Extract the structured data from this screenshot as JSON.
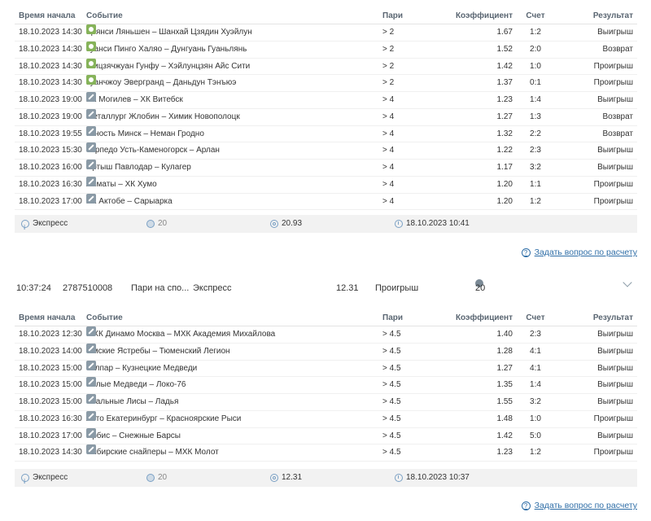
{
  "headers": {
    "time": "Время начала",
    "event": "Событие",
    "bet": "Пари",
    "coef": "Коэффициент",
    "score": "Счет",
    "result": "Результат"
  },
  "bet1": {
    "rows": [
      {
        "time": "18.10.2023 14:30",
        "sport": "football",
        "event": "Цзянси Ляньшен – Шанхай Цзядин Хуэйлун",
        "bet": "> 2",
        "coef": "1.67",
        "score": "1:2",
        "result": "Выигрыш"
      },
      {
        "time": "18.10.2023 14:30",
        "sport": "football",
        "event": "Гуанси Пинго Халяо – Дунгуань Гуаньлянь",
        "bet": "> 2",
        "coef": "1.52",
        "score": "2:0",
        "result": "Возврат"
      },
      {
        "time": "18.10.2023 14:30",
        "sport": "football",
        "event": "Шицзячжуан Гунфу – Хэйлунцзян Айс Сити",
        "bet": "> 2",
        "coef": "1.42",
        "score": "1:0",
        "result": "Проигрыш"
      },
      {
        "time": "18.10.2023 14:30",
        "sport": "football",
        "event": "Гуанчжоу Эвергранд – Даньдун Тэнъюэ",
        "bet": "> 2",
        "coef": "1.37",
        "score": "0:1",
        "result": "Проигрыш"
      },
      {
        "time": "18.10.2023 19:00",
        "sport": "hockey",
        "event": "ХК Могилев – ХК Витебск",
        "bet": "> 4",
        "coef": "1.23",
        "score": "1:4",
        "result": "Выигрыш"
      },
      {
        "time": "18.10.2023 19:00",
        "sport": "hockey",
        "event": "Металлург Жлобин – Химик Новополоцк",
        "bet": "> 4",
        "coef": "1.27",
        "score": "1:3",
        "result": "Возврат"
      },
      {
        "time": "18.10.2023 19:55",
        "sport": "hockey",
        "event": "Юность Минск – Неман Гродно",
        "bet": "> 4",
        "coef": "1.32",
        "score": "2:2",
        "result": "Возврат"
      },
      {
        "time": "18.10.2023 15:30",
        "sport": "hockey",
        "event": "Торпедо Усть-Каменогорск – Арлан",
        "bet": "> 4",
        "coef": "1.22",
        "score": "2:3",
        "result": "Выигрыш"
      },
      {
        "time": "18.10.2023 16:00",
        "sport": "hockey",
        "event": "Иртыш Павлодар – Кулагер",
        "bet": "> 4",
        "coef": "1.17",
        "score": "3:2",
        "result": "Выигрыш"
      },
      {
        "time": "18.10.2023 16:30",
        "sport": "hockey",
        "event": "Алматы – ХК Хумо",
        "bet": "> 4",
        "coef": "1.20",
        "score": "1:1",
        "result": "Проигрыш"
      },
      {
        "time": "18.10.2023 17:00",
        "sport": "hockey",
        "event": "ХК Актобе – Сарыарка",
        "bet": "> 4",
        "coef": "1.20",
        "score": "1:2",
        "result": "Проигрыш"
      }
    ],
    "summary": {
      "type": "Экспресс",
      "stake": "20",
      "coef": "20.93",
      "date": "18.10.2023 10:41"
    }
  },
  "ask_label": "Задать вопрос по расчету",
  "betrow2": {
    "time": "10:37:24",
    "id": "2787510008",
    "kind": "Пари на спо...",
    "type": "Экспресс",
    "coef": "12.31",
    "result": "Проигрыш",
    "stake": "20"
  },
  "bet2": {
    "rows": [
      {
        "time": "18.10.2023 12:30",
        "sport": "hockey",
        "event": "МХК Динамо Москва – МХК Академия Михайлова",
        "bet": "> 4.5",
        "coef": "1.40",
        "score": "2:3",
        "result": "Выигрыш"
      },
      {
        "time": "18.10.2023 14:00",
        "sport": "hockey",
        "event": "Омские Ястребы – Тюменский Легион",
        "bet": "> 4.5",
        "coef": "1.28",
        "score": "4:1",
        "result": "Выигрыш"
      },
      {
        "time": "18.10.2023 15:00",
        "sport": "hockey",
        "event": "Толпар – Кузнецкие Медведи",
        "bet": "> 4.5",
        "coef": "1.27",
        "score": "4:1",
        "result": "Выигрыш"
      },
      {
        "time": "18.10.2023 15:00",
        "sport": "hockey",
        "event": "Белые Медведи – Локо-76",
        "bet": "> 4.5",
        "coef": "1.35",
        "score": "1:4",
        "result": "Выигрыш"
      },
      {
        "time": "18.10.2023 15:00",
        "sport": "hockey",
        "event": "Стальные Лисы – Ладья",
        "bet": "> 4.5",
        "coef": "1.55",
        "score": "3:2",
        "result": "Выигрыш"
      },
      {
        "time": "18.10.2023 16:30",
        "sport": "hockey",
        "event": "Авто Екатеринбург – Красноярские Рыси",
        "bet": "> 4.5",
        "coef": "1.48",
        "score": "1:0",
        "result": "Проигрыш"
      },
      {
        "time": "18.10.2023 17:00",
        "sport": "hockey",
        "event": "Ирбис – Снежные Барсы",
        "bet": "> 4.5",
        "coef": "1.42",
        "score": "5:0",
        "result": "Выигрыш"
      },
      {
        "time": "18.10.2023 14:30",
        "sport": "hockey",
        "event": "Сибирские снайперы – МХК Молот",
        "bet": "> 4.5",
        "coef": "1.23",
        "score": "1:2",
        "result": "Проигрыш"
      }
    ],
    "summary": {
      "type": "Экспресс",
      "stake": "20",
      "coef": "12.31",
      "date": "18.10.2023 10:37"
    }
  }
}
